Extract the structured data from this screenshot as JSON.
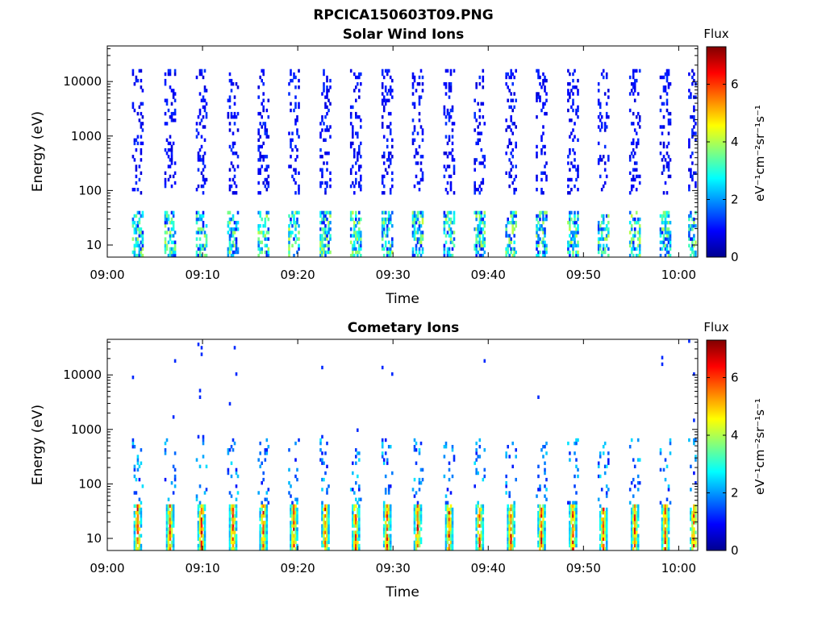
{
  "figure_title": "RPCICA150603T09.PNG",
  "chart_data": [
    {
      "type": "heatmap",
      "title": "Solar Wind Ions",
      "xlabel": "Time",
      "ylabel": "Energy (eV)",
      "y_scale": "log",
      "ylim": [
        6,
        45000
      ],
      "xlim": [
        "09:00",
        "10:02"
      ],
      "x_ticks": [
        "09:00",
        "09:10",
        "09:20",
        "09:30",
        "09:40",
        "09:50",
        "10:00"
      ],
      "y_ticks": [
        "10",
        "100",
        "1000",
        "10000"
      ],
      "colorbar": {
        "label": "Flux",
        "unit": "eV⁻¹cm⁻²sr⁻¹s⁻¹",
        "range": [
          0,
          7.3
        ],
        "ticks": [
          "0",
          "2",
          "4",
          "6"
        ],
        "colormap": "jet"
      },
      "scan_times_min": [
        3.1,
        6.5,
        9.8,
        13.1,
        16.3,
        19.5,
        22.8,
        26.0,
        29.3,
        32.5,
        35.8,
        39.0,
        42.3,
        45.5,
        48.8,
        52.0,
        55.3,
        58.5,
        61.5
      ],
      "high_energy_range_ev": [
        80,
        16000
      ],
      "high_energy_level": 1.0,
      "low_energy_range_ev": [
        6,
        40
      ],
      "low_energy_level": 3.2,
      "grid": false
    },
    {
      "type": "heatmap",
      "title": "Cometary Ions",
      "xlabel": "Time",
      "ylabel": "Energy (eV)",
      "y_scale": "log",
      "ylim": [
        6,
        45000
      ],
      "xlim": [
        "09:00",
        "10:02"
      ],
      "x_ticks": [
        "09:00",
        "09:10",
        "09:20",
        "09:30",
        "09:40",
        "09:50",
        "10:00"
      ],
      "y_ticks": [
        "10",
        "100",
        "1000",
        "10000"
      ],
      "colorbar": {
        "label": "Flux",
        "unit": "eV⁻¹cm⁻²sr⁻¹s⁻¹",
        "range": [
          0,
          7.3
        ],
        "ticks": [
          "0",
          "2",
          "4",
          "6"
        ],
        "colormap": "jet"
      },
      "scan_times_min": [
        3.1,
        6.5,
        9.8,
        13.1,
        16.3,
        19.5,
        22.8,
        26.0,
        29.3,
        32.5,
        35.8,
        39.0,
        42.3,
        45.5,
        48.8,
        52.0,
        55.3,
        58.5,
        61.5
      ],
      "peak_energy_range_ev": [
        6,
        40
      ],
      "peak_level": 6.5,
      "mid_energy_range_ev": [
        40,
        700
      ],
      "mid_energy_level": 2.0,
      "grid": false
    }
  ]
}
